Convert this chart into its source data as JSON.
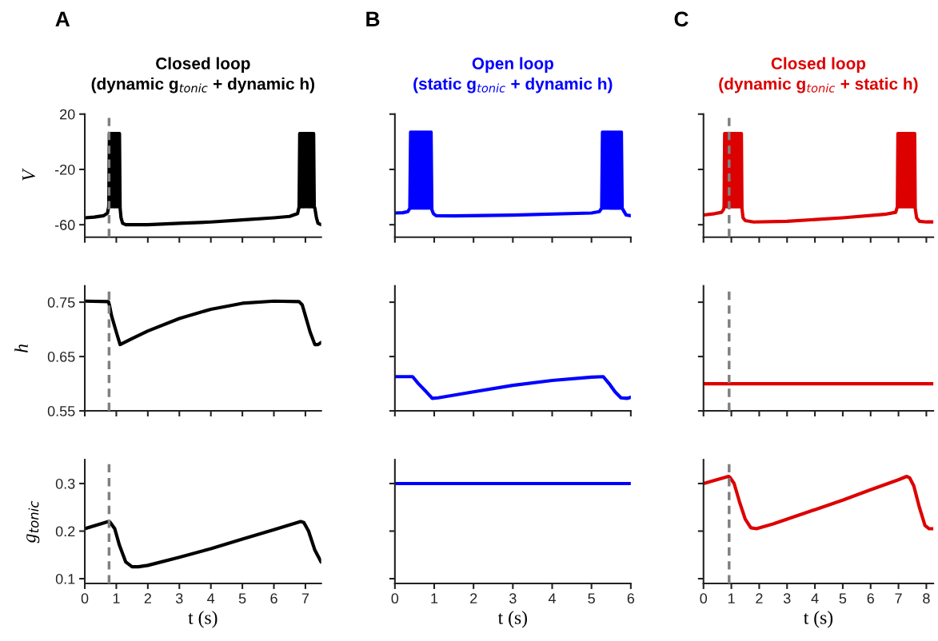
{
  "chart_data": [
    {
      "type": "line",
      "title": "Closed loop\n(dynamic g$_{tonic}$ + dynamic h)",
      "annotations": [
        "A"
      ],
      "ylabel": "V",
      "xlim": [
        0,
        7.5
      ],
      "xticks": [
        0,
        1,
        2,
        3,
        4,
        5,
        6,
        7
      ],
      "ylim": [
        -69,
        20
      ],
      "yticks": [
        -60,
        -20,
        20
      ],
      "tick_labels": "y",
      "ref_lines": [
        {
          "axis": "x",
          "value": 0.77,
          "color": "#808080",
          "line_style": "dashed"
        }
      ],
      "series": [
        {
          "color": "#000000",
          "x": [
            0,
            0.3,
            0.6,
            0.72,
            0.76,
            0.78,
            0.8,
            0.82,
            0.84,
            0.86,
            0.88,
            0.9,
            0.92,
            0.94,
            0.96,
            0.98,
            1.0,
            1.02,
            1.04,
            1.06,
            1.08,
            1.1,
            1.12,
            1.15,
            1.2,
            1.3,
            1.5,
            2,
            3,
            4,
            5,
            6,
            6.5,
            6.75,
            6.8,
            6.82,
            6.84,
            6.86,
            6.88,
            6.9,
            6.92,
            6.94,
            6.96,
            6.98,
            7.0,
            7.02,
            7.04,
            7.06,
            7.08,
            7.1,
            7.12,
            7.14,
            7.16,
            7.18,
            7.2,
            7.22,
            7.24,
            7.26,
            7.28,
            7.3,
            7.35,
            7.4,
            7.5
          ],
          "values": [
            -55,
            -54.5,
            -53.5,
            -51.5,
            -47,
            6,
            -47,
            6,
            -47,
            6,
            -47,
            6,
            -47,
            6,
            -47,
            6,
            -47,
            6,
            -47,
            6,
            -47,
            6,
            -48,
            -55,
            -59,
            -60,
            -60,
            -60,
            -59,
            -58,
            -56.5,
            -55,
            -54,
            -52,
            -47,
            6,
            -47,
            6,
            -47,
            6,
            -47,
            6,
            -47,
            6,
            -47,
            6,
            -47,
            6,
            -47,
            6,
            -47,
            6,
            -47,
            6,
            -47,
            6,
            -47,
            6,
            -47,
            -48,
            -55,
            -59,
            -60
          ]
        }
      ]
    },
    {
      "type": "line",
      "title": "Open loop\n(static g$_{tonic}$ + dynamic h)",
      "annotations": [
        "B"
      ],
      "xlim": [
        0,
        6
      ],
      "xticks": [
        0,
        1,
        2,
        3,
        4,
        5,
        6
      ],
      "ylim": [
        -69,
        20
      ],
      "yticks": [
        -60,
        -20,
        20
      ],
      "tick_labels": false,
      "series": [
        {
          "color": "#0000ff",
          "x": [
            0,
            0.2,
            0.33,
            0.38,
            0.4,
            0.42,
            0.44,
            0.46,
            0.48,
            0.5,
            0.52,
            0.54,
            0.56,
            0.58,
            0.6,
            0.62,
            0.64,
            0.66,
            0.68,
            0.7,
            0.72,
            0.74,
            0.76,
            0.78,
            0.8,
            0.82,
            0.84,
            0.86,
            0.88,
            0.9,
            0.92,
            0.94,
            0.98,
            1.05,
            1.5,
            3,
            5,
            5.2,
            5.26,
            5.28,
            5.3,
            5.32,
            5.34,
            5.36,
            5.38,
            5.4,
            5.42,
            5.44,
            5.46,
            5.48,
            5.5,
            5.52,
            5.54,
            5.56,
            5.58,
            5.6,
            5.62,
            5.64,
            5.66,
            5.68,
            5.7,
            5.72,
            5.74,
            5.76,
            5.78,
            5.82,
            5.88,
            6
          ],
          "values": [
            -51.5,
            -51.3,
            -50.5,
            -48,
            7,
            -48,
            7,
            -48,
            7,
            -48,
            7,
            -48,
            7,
            -48,
            7,
            -48,
            7,
            -48,
            7,
            -48,
            7,
            -48,
            7,
            -48,
            7,
            -48,
            7,
            -48,
            7,
            -48,
            7,
            -49,
            -52,
            -53.5,
            -53.6,
            -53,
            -51.5,
            -50.5,
            -48,
            7,
            -48,
            7,
            -48,
            7,
            -48,
            7,
            -48,
            7,
            -48,
            7,
            -48,
            7,
            -48,
            7,
            -48,
            7,
            -48,
            7,
            -48,
            7,
            -48,
            7,
            -48,
            7,
            -48,
            -50,
            -53,
            -53.5
          ]
        }
      ]
    },
    {
      "type": "line",
      "title": "Closed loop\n(dynamic g$_{tonic}$ + static h)",
      "annotations": [
        "C"
      ],
      "xlim": [
        0,
        8.25
      ],
      "xticks": [
        0,
        1,
        2,
        3,
        4,
        5,
        6,
        7,
        8
      ],
      "ylim": [
        -69,
        20
      ],
      "yticks": [
        -60,
        -20,
        20
      ],
      "tick_labels": false,
      "ref_lines": [
        {
          "axis": "x",
          "value": 0.92,
          "color": "#808080",
          "line_style": "dashed"
        }
      ],
      "series": [
        {
          "color": "#dd0000",
          "x": [
            0,
            0.4,
            0.65,
            0.72,
            0.74,
            0.76,
            0.78,
            0.8,
            0.82,
            0.84,
            0.86,
            0.88,
            0.9,
            0.92,
            0.94,
            0.96,
            0.98,
            1.0,
            1.02,
            1.04,
            1.06,
            1.08,
            1.1,
            1.12,
            1.14,
            1.16,
            1.18,
            1.2,
            1.22,
            1.24,
            1.26,
            1.28,
            1.3,
            1.32,
            1.34,
            1.36,
            1.38,
            1.42,
            1.5,
            1.8,
            3,
            5,
            6.5,
            6.9,
            6.96,
            6.98,
            7.0,
            7.02,
            7.04,
            7.06,
            7.08,
            7.1,
            7.12,
            7.14,
            7.16,
            7.18,
            7.2,
            7.22,
            7.24,
            7.26,
            7.28,
            7.3,
            7.32,
            7.34,
            7.36,
            7.38,
            7.4,
            7.42,
            7.44,
            7.46,
            7.48,
            7.5,
            7.52,
            7.54,
            7.56,
            7.58,
            7.6,
            7.65,
            7.75,
            8,
            8.25
          ],
          "values": [
            -53,
            -52,
            -51,
            -49,
            -47,
            6,
            -47,
            6,
            -47,
            6,
            -47,
            6,
            -47,
            6,
            -47,
            6,
            -47,
            6,
            -47,
            6,
            -47,
            6,
            -47,
            6,
            -47,
            6,
            -47,
            6,
            -47,
            6,
            -47,
            6,
            -47,
            6,
            -47,
            6,
            -48,
            -55,
            -57,
            -58,
            -57.5,
            -55,
            -52.5,
            -51,
            -47,
            6,
            -47,
            6,
            -47,
            6,
            -47,
            6,
            -47,
            6,
            -47,
            6,
            -47,
            6,
            -47,
            6,
            -47,
            6,
            -47,
            6,
            -47,
            6,
            -47,
            6,
            -47,
            6,
            -47,
            6,
            -47,
            6,
            -47,
            6,
            -48,
            -55,
            -57.5,
            -58,
            -58
          ]
        }
      ]
    },
    {
      "type": "line",
      "ylabel": "h",
      "xlim": [
        0,
        7.5
      ],
      "xticks": [
        0,
        1,
        2,
        3,
        4,
        5,
        6,
        7
      ],
      "ylim": [
        0.55,
        0.78
      ],
      "yticks": [
        0.55,
        0.65,
        0.75
      ],
      "tick_labels": "y",
      "ref_lines": [
        {
          "axis": "x",
          "value": 0.77,
          "color": "#808080",
          "line_style": "dashed"
        }
      ],
      "series": [
        {
          "color": "#000000",
          "x": [
            0,
            0.75,
            0.78,
            0.85,
            1.0,
            1.12,
            1.5,
            2,
            3,
            4,
            5,
            6,
            6.8,
            6.9,
            7.0,
            7.15,
            7.3,
            7.4,
            7.5
          ],
          "values": [
            0.752,
            0.751,
            0.745,
            0.725,
            0.695,
            0.672,
            0.683,
            0.697,
            0.72,
            0.737,
            0.748,
            0.752,
            0.751,
            0.745,
            0.725,
            0.695,
            0.672,
            0.672,
            0.676
          ]
        }
      ]
    },
    {
      "type": "line",
      "xlim": [
        0,
        6
      ],
      "xticks": [
        0,
        1,
        2,
        3,
        4,
        5,
        6
      ],
      "ylim": [
        0.55,
        0.78
      ],
      "yticks": [
        0.55,
        0.65,
        0.75
      ],
      "tick_labels": false,
      "series": [
        {
          "color": "#0000ff",
          "x": [
            0,
            0.45,
            0.6,
            0.8,
            0.95,
            1.1,
            2,
            3,
            4,
            5,
            5.3,
            5.45,
            5.6,
            5.75,
            5.9,
            6
          ],
          "values": [
            0.613,
            0.613,
            0.6,
            0.585,
            0.573,
            0.574,
            0.585,
            0.597,
            0.606,
            0.612,
            0.613,
            0.6,
            0.585,
            0.574,
            0.573,
            0.575
          ]
        }
      ]
    },
    {
      "type": "line",
      "xlim": [
        0,
        8.25
      ],
      "xticks": [
        0,
        1,
        2,
        3,
        4,
        5,
        6,
        7,
        8
      ],
      "ylim": [
        0.55,
        0.78
      ],
      "yticks": [
        0.55,
        0.65,
        0.75
      ],
      "tick_labels": false,
      "ref_lines": [
        {
          "axis": "x",
          "value": 0.92,
          "color": "#808080",
          "line_style": "dashed"
        }
      ],
      "series": [
        {
          "color": "#dd0000",
          "x": [
            0,
            8.25
          ],
          "values": [
            0.6,
            0.6
          ]
        }
      ]
    },
    {
      "type": "line",
      "ylabel": "g$_{tonic}$",
      "xlabel": "t (s)",
      "xlim": [
        0,
        7.5
      ],
      "xticks": [
        0,
        1,
        2,
        3,
        4,
        5,
        6,
        7
      ],
      "ylim": [
        0.09,
        0.35
      ],
      "yticks": [
        0.1,
        0.2,
        0.3
      ],
      "ref_lines": [
        {
          "axis": "x",
          "value": 0.77,
          "color": "#808080",
          "line_style": "dashed"
        }
      ],
      "series": [
        {
          "color": "#000000",
          "x": [
            0,
            0.75,
            0.8,
            0.95,
            1.1,
            1.3,
            1.5,
            1.7,
            2,
            3,
            4,
            5,
            6,
            6.85,
            6.95,
            7.1,
            7.3,
            7.5
          ],
          "values": [
            0.205,
            0.22,
            0.219,
            0.205,
            0.17,
            0.135,
            0.125,
            0.125,
            0.128,
            0.145,
            0.163,
            0.183,
            0.203,
            0.22,
            0.218,
            0.2,
            0.16,
            0.135
          ]
        }
      ]
    },
    {
      "type": "line",
      "xlabel": "t (s)",
      "xlim": [
        0,
        6
      ],
      "xticks": [
        0,
        1,
        2,
        3,
        4,
        5,
        6
      ],
      "ylim": [
        0.09,
        0.35
      ],
      "yticks": [
        0.1,
        0.2,
        0.3
      ],
      "tick_labels": "x",
      "series": [
        {
          "color": "#0000ff",
          "x": [
            0,
            6
          ],
          "values": [
            0.3,
            0.3
          ]
        }
      ]
    },
    {
      "type": "line",
      "xlabel": "t (s)",
      "xlim": [
        0,
        8.25
      ],
      "xticks": [
        0,
        1,
        2,
        3,
        4,
        5,
        6,
        7,
        8
      ],
      "ylim": [
        0.09,
        0.35
      ],
      "yticks": [
        0.1,
        0.2,
        0.3
      ],
      "tick_labels": "x",
      "ref_lines": [
        {
          "axis": "x",
          "value": 0.92,
          "color": "#808080",
          "line_style": "dashed"
        }
      ],
      "series": [
        {
          "color": "#dd0000",
          "x": [
            0,
            0.9,
            0.95,
            1.1,
            1.3,
            1.5,
            1.7,
            1.9,
            2.5,
            4,
            5,
            6,
            7,
            7.3,
            7.4,
            7.55,
            7.75,
            7.95,
            8.1,
            8.25
          ],
          "values": [
            0.3,
            0.315,
            0.313,
            0.3,
            0.26,
            0.225,
            0.207,
            0.205,
            0.215,
            0.245,
            0.265,
            0.287,
            0.308,
            0.315,
            0.312,
            0.295,
            0.25,
            0.212,
            0.205,
            0.205
          ]
        }
      ]
    }
  ]
}
